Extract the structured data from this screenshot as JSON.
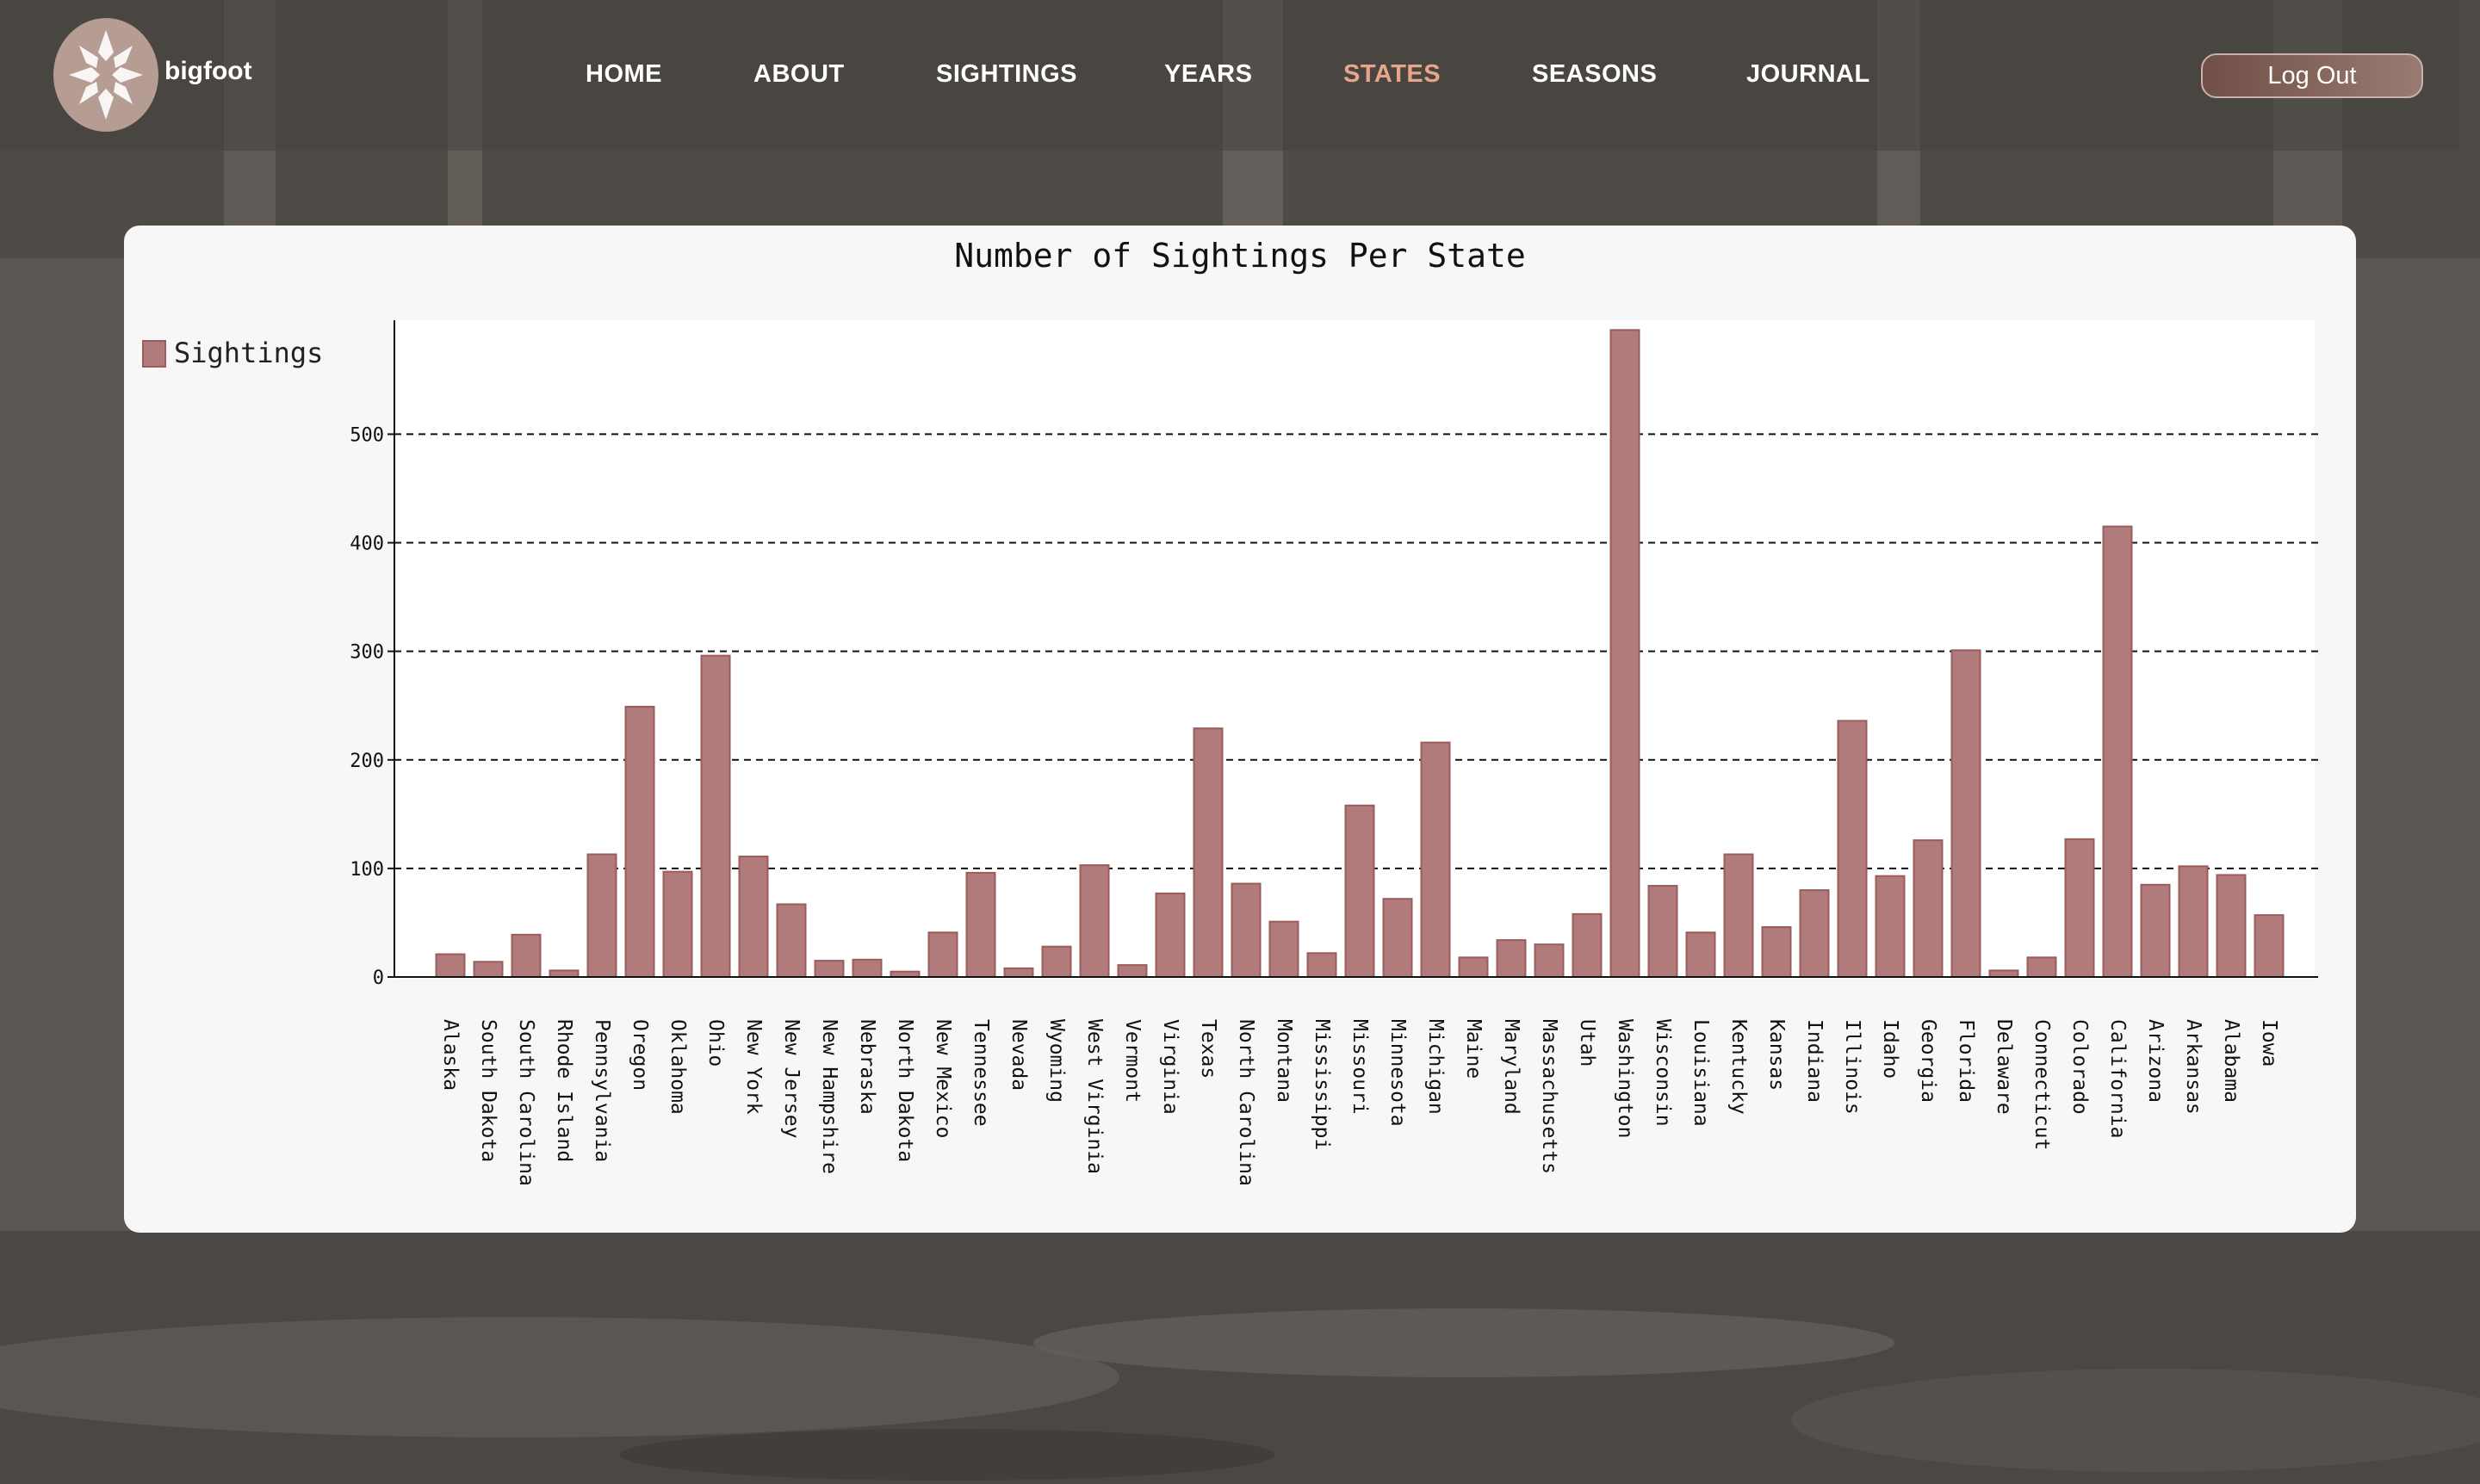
{
  "brand": {
    "name": "bigfoot"
  },
  "nav": {
    "items": [
      {
        "label": "HOME",
        "active": false
      },
      {
        "label": "ABOUT",
        "active": false
      },
      {
        "label": "SIGHTINGS",
        "active": false
      },
      {
        "label": "YEARS",
        "active": false
      },
      {
        "label": "STATES",
        "active": true
      },
      {
        "label": "SEASONS",
        "active": false
      },
      {
        "label": "JOURNAL",
        "active": false
      }
    ],
    "logout_label": "Log Out"
  },
  "colors": {
    "bar_fill": "#b27b7b",
    "bar_stroke": "#9a5c5c",
    "active_nav": "#e8a58a"
  },
  "chart_data": {
    "type": "bar",
    "title": "Number of Sightings Per State",
    "xlabel": "",
    "ylabel": "",
    "legend": {
      "position": "top-left"
    },
    "grid": true,
    "ylim": [
      0,
      605
    ],
    "yticks": [
      0,
      100,
      200,
      300,
      400,
      500
    ],
    "categories": [
      "Alaska",
      "South Dakota",
      "South Carolina",
      "Rhode Island",
      "Pennsylvania",
      "Oregon",
      "Oklahoma",
      "Ohio",
      "New York",
      "New Jersey",
      "New Hampshire",
      "Nebraska",
      "North Dakota",
      "New Mexico",
      "Tennessee",
      "Nevada",
      "Wyoming",
      "West Virginia",
      "Vermont",
      "Virginia",
      "Texas",
      "North Carolina",
      "Montana",
      "Mississippi",
      "Missouri",
      "Minnesota",
      "Michigan",
      "Maine",
      "Maryland",
      "Massachusetts",
      "Utah",
      "Washington",
      "Wisconsin",
      "Louisiana",
      "Kentucky",
      "Kansas",
      "Indiana",
      "Illinois",
      "Idaho",
      "Georgia",
      "Florida",
      "Delaware",
      "Connecticut",
      "Colorado",
      "California",
      "Arizona",
      "Arkansas",
      "Alabama",
      "Iowa"
    ],
    "series": [
      {
        "name": "Sightings",
        "values": [
          21,
          14,
          39,
          6,
          113,
          249,
          97,
          296,
          111,
          67,
          15,
          16,
          5,
          41,
          96,
          8,
          28,
          103,
          11,
          77,
          229,
          86,
          51,
          22,
          158,
          72,
          216,
          18,
          34,
          30,
          58,
          596,
          84,
          41,
          113,
          46,
          80,
          236,
          93,
          126,
          301,
          6,
          18,
          127,
          415,
          85,
          102,
          94,
          57
        ]
      }
    ]
  }
}
